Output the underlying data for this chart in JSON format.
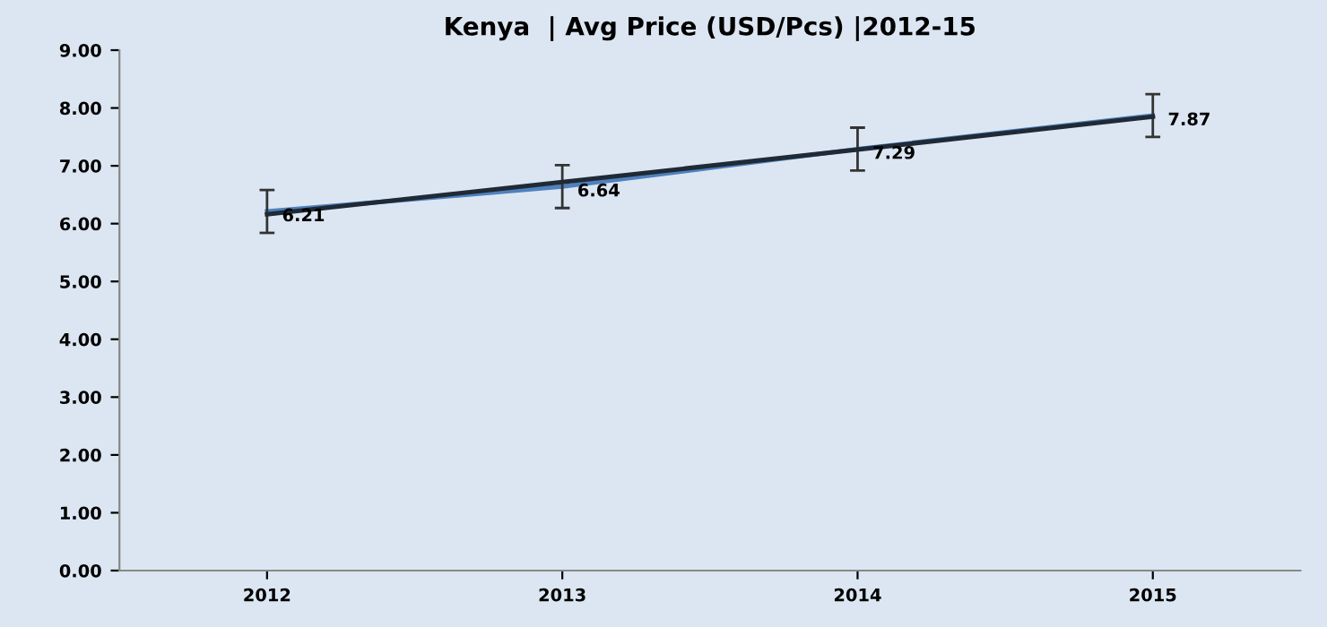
{
  "chart_data": {
    "type": "line",
    "title": "Kenya  | Avg Price (USD/Pcs) |2012-15",
    "categories": [
      "2012",
      "2013",
      "2014",
      "2015"
    ],
    "series": [
      {
        "color": "#4f81bd",
        "values": [
          6.21,
          6.64,
          7.29,
          7.87
        ],
        "errors": [
          0.37,
          0.37,
          0.37,
          0.37
        ],
        "data_labels": true
      },
      {
        "color": "#1f2a36",
        "values": [
          6.16,
          6.72,
          7.28,
          7.85
        ]
      }
    ],
    "ylim": [
      0,
      9
    ],
    "yticks": [
      {
        "value": 0,
        "label": "0.00"
      },
      {
        "value": 1,
        "label": "1.00"
      },
      {
        "value": 2,
        "label": "2.00"
      },
      {
        "value": 3,
        "label": "3.00"
      },
      {
        "value": 4,
        "label": "4.00"
      },
      {
        "value": 5,
        "label": "5.00"
      },
      {
        "value": 6,
        "label": "6.00"
      },
      {
        "value": 7,
        "label": "7.00"
      },
      {
        "value": 8,
        "label": "8.00"
      },
      {
        "value": 9,
        "label": "9.00"
      }
    ],
    "grid": false,
    "legend": false,
    "marker": "none",
    "line_style": "solid"
  }
}
